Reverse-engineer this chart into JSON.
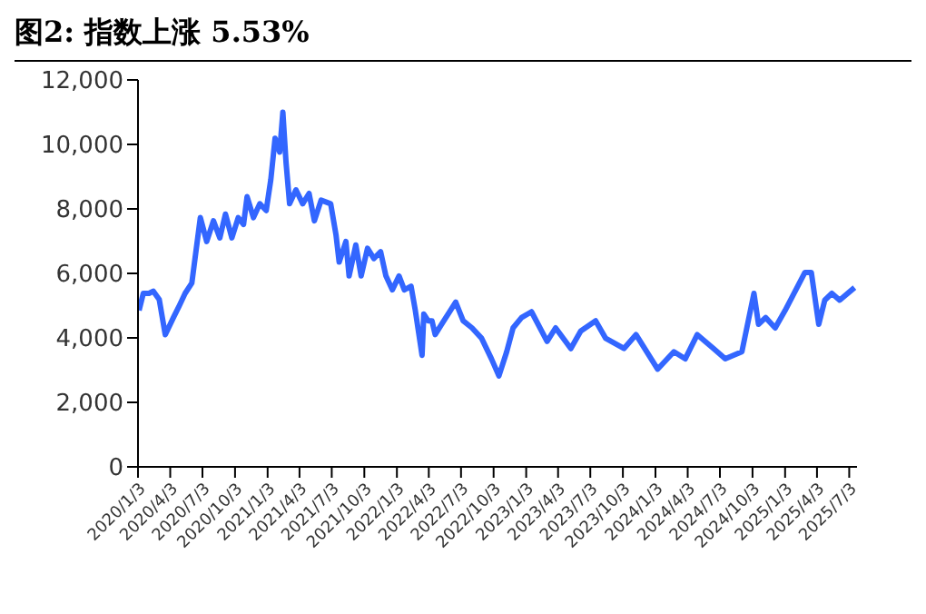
{
  "chart_data": {
    "type": "line",
    "title": "图2:  指数上涨 5.53%",
    "x": [
      "2020-01-06",
      "2020-01-18",
      "2020-02-03",
      "2020-02-15",
      "2020-03-03",
      "2020-03-20",
      "2020-04-12",
      "2020-04-27",
      "2020-05-15",
      "2020-06-03",
      "2020-06-27",
      "2020-07-15",
      "2020-08-03",
      "2020-08-21",
      "2020-09-06",
      "2020-09-24",
      "2020-10-12",
      "2020-10-27",
      "2020-11-06",
      "2020-11-24",
      "2020-12-12",
      "2020-12-30",
      "2021-01-12",
      "2021-01-24",
      "2021-02-06",
      "2021-02-15",
      "2021-02-24",
      "2021-03-06",
      "2021-03-24",
      "2021-04-12",
      "2021-04-30",
      "2021-05-15",
      "2021-06-03",
      "2021-06-30",
      "2021-07-15",
      "2021-07-24",
      "2021-08-12",
      "2021-08-21",
      "2021-09-09",
      "2021-09-24",
      "2021-10-12",
      "2021-10-30",
      "2021-11-18",
      "2021-12-03",
      "2021-12-21",
      "2022-01-09",
      "2022-01-24",
      "2022-02-12",
      "2022-02-24",
      "2022-03-15",
      "2022-03-20",
      "2022-04-01",
      "2022-04-12",
      "2022-04-21",
      "2022-05-09",
      "2022-06-03",
      "2022-06-18",
      "2022-07-09",
      "2022-08-03",
      "2022-08-30",
      "2022-09-27",
      "2022-10-18",
      "2022-11-09",
      "2022-11-27",
      "2022-12-21",
      "2023-01-18",
      "2023-03-03",
      "2023-03-27",
      "2023-05-09",
      "2023-06-06",
      "2023-07-18",
      "2023-08-15",
      "2023-10-06",
      "2023-11-09",
      "2024-01-09",
      "2024-02-24",
      "2024-03-27",
      "2024-04-30",
      "2024-06-15",
      "2024-07-18",
      "2024-09-03",
      "2024-10-07",
      "2024-10-20",
      "2024-11-09",
      "2024-12-06",
      "2025-01-03",
      "2025-02-28",
      "2025-03-18",
      "2025-04-08",
      "2025-04-25",
      "2025-05-15",
      "2025-06-06",
      "2025-07-18"
    ],
    "series": [
      {
        "color": "#3366ff",
        "values": [
          4850,
          5380,
          5380,
          5450,
          5190,
          4100,
          4630,
          4960,
          5380,
          5700,
          7730,
          6990,
          7630,
          7100,
          7840,
          7100,
          7730,
          7520,
          8380,
          7730,
          8160,
          7950,
          8910,
          10190,
          9760,
          11000,
          9440,
          8160,
          8590,
          8160,
          8480,
          7630,
          8270,
          8160,
          7200,
          6350,
          6990,
          5920,
          6880,
          5920,
          6780,
          6460,
          6670,
          5920,
          5490,
          5920,
          5490,
          5600,
          4850,
          3460,
          4740,
          4530,
          4530,
          4100,
          4420,
          4850,
          5110,
          4530,
          4310,
          3990,
          3350,
          2820,
          3570,
          4310,
          4630,
          4810,
          3890,
          4310,
          3670,
          4210,
          4530,
          3990,
          3670,
          4100,
          3030,
          3570,
          3350,
          4100,
          3670,
          3350,
          3570,
          5380,
          4420,
          4630,
          4310,
          4850,
          6030,
          6030,
          4420,
          5170,
          5380,
          5170,
          5560
        ]
      }
    ],
    "xlim": [
      "2020-01-03",
      "2025-07-25"
    ],
    "xticks": [
      {
        "value": "2020-01-03",
        "label": "2020/1/3"
      },
      {
        "value": "2020-04-03",
        "label": "2020/4/3"
      },
      {
        "value": "2020-07-03",
        "label": "2020/7/3"
      },
      {
        "value": "2020-10-03",
        "label": "2020/10/3"
      },
      {
        "value": "2021-01-03",
        "label": "2021/1/3"
      },
      {
        "value": "2021-04-03",
        "label": "2021/4/3"
      },
      {
        "value": "2021-07-03",
        "label": "2021/7/3"
      },
      {
        "value": "2021-10-03",
        "label": "2021/10/3"
      },
      {
        "value": "2022-01-03",
        "label": "2022/1/3"
      },
      {
        "value": "2022-04-03",
        "label": "2022/4/3"
      },
      {
        "value": "2022-07-03",
        "label": "2022/7/3"
      },
      {
        "value": "2022-10-03",
        "label": "2022/10/3"
      },
      {
        "value": "2023-01-03",
        "label": "2023/1/3"
      },
      {
        "value": "2023-04-03",
        "label": "2023/4/3"
      },
      {
        "value": "2023-07-03",
        "label": "2023/7/3"
      },
      {
        "value": "2023-10-03",
        "label": "2023/10/3"
      },
      {
        "value": "2024-01-03",
        "label": "2024/1/3"
      },
      {
        "value": "2024-04-03",
        "label": "2024/4/3"
      },
      {
        "value": "2024-07-03",
        "label": "2024/7/3"
      },
      {
        "value": "2024-10-03",
        "label": "2024/10/3"
      },
      {
        "value": "2025-01-03",
        "label": "2025/1/3"
      },
      {
        "value": "2025-04-03",
        "label": "2025/4/3"
      },
      {
        "value": "2025-07-03",
        "label": "2025/7/3"
      }
    ],
    "ylim": [
      0,
      12000
    ],
    "yticks": [
      0,
      {
        "value": 2000,
        "label": "2,000"
      },
      {
        "value": 4000,
        "label": "4,000"
      },
      {
        "value": 6000,
        "label": "6,000"
      },
      {
        "value": 8000,
        "label": "8,000"
      },
      {
        "value": 10000,
        "label": "10,000"
      },
      {
        "value": 12000,
        "label": "12,000"
      }
    ],
    "grid": false,
    "legend": false,
    "marker": "none",
    "line_style": "solid"
  }
}
